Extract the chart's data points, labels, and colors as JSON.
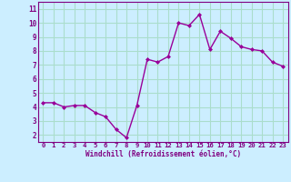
{
  "x": [
    0,
    1,
    2,
    3,
    4,
    5,
    6,
    7,
    8,
    9,
    10,
    11,
    12,
    13,
    14,
    15,
    16,
    17,
    18,
    19,
    20,
    21,
    22,
    23
  ],
  "y": [
    4.3,
    4.3,
    4.0,
    4.1,
    4.1,
    3.6,
    3.3,
    2.4,
    1.8,
    4.1,
    7.4,
    7.2,
    7.6,
    10.0,
    9.8,
    10.6,
    8.1,
    9.4,
    8.9,
    8.3,
    8.1,
    8.0,
    7.2,
    6.9
  ],
  "line_color": "#990099",
  "marker": "D",
  "marker_size": 2.0,
  "linewidth": 1.0,
  "xlim": [
    -0.5,
    23.5
  ],
  "ylim": [
    1.5,
    11.5
  ],
  "yticks": [
    2,
    3,
    4,
    5,
    6,
    7,
    8,
    9,
    10,
    11
  ],
  "xticks": [
    0,
    1,
    2,
    3,
    4,
    5,
    6,
    7,
    8,
    9,
    10,
    11,
    12,
    13,
    14,
    15,
    16,
    17,
    18,
    19,
    20,
    21,
    22,
    23
  ],
  "xlabel": "Windchill (Refroidissement éolien,°C)",
  "background_color": "#cceeff",
  "grid_color": "#aaddcc",
  "tick_color": "#800080",
  "label_color": "#800080",
  "font_name": "monospace"
}
